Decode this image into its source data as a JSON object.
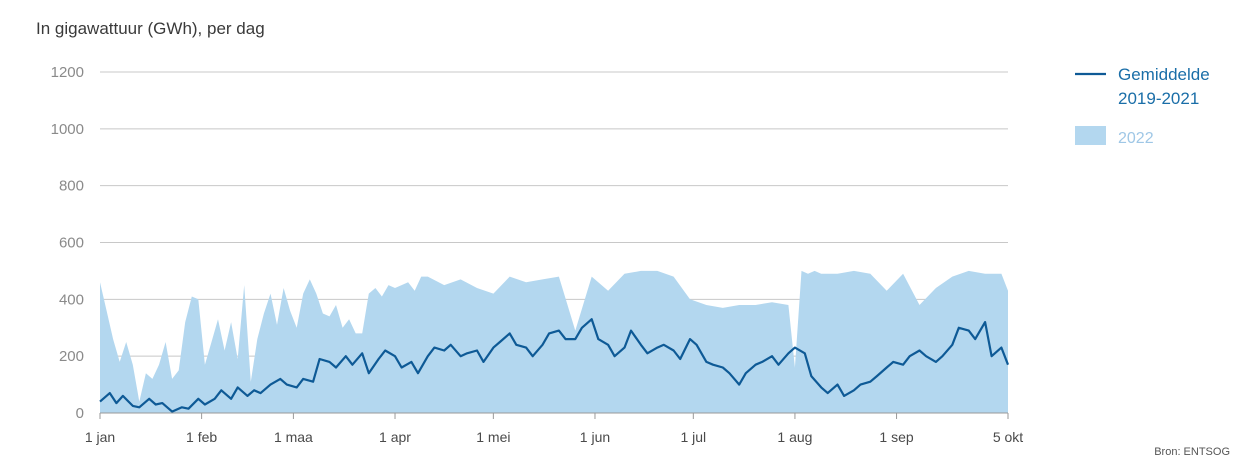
{
  "chart_data": {
    "type": "area",
    "title": "",
    "ylabel": "In gigawattuur (GWh), per dag",
    "xlabel": "",
    "ylim": [
      0,
      1200
    ],
    "yticks": [
      0,
      200,
      400,
      600,
      800,
      1000,
      1200
    ],
    "x_range_days": [
      0,
      277
    ],
    "xticks": [
      {
        "label": "1 jan",
        "day": 0
      },
      {
        "label": "1 feb",
        "day": 31
      },
      {
        "label": "1 maa",
        "day": 59
      },
      {
        "label": "1 apr",
        "day": 90
      },
      {
        "label": "1 mei",
        "day": 120
      },
      {
        "label": "1 jun",
        "day": 151
      },
      {
        "label": "1 jul",
        "day": 181
      },
      {
        "label": "1 aug",
        "day": 212
      },
      {
        "label": "1 sep",
        "day": 243
      },
      {
        "label": "5 okt",
        "day": 277
      }
    ],
    "grid": true,
    "legend_position": "top-right",
    "series": [
      {
        "name": "Gemiddelde 2019-2021",
        "name_lines": [
          "Gemiddelde",
          "2019-2021"
        ],
        "kind": "line",
        "color": "#0e5a96",
        "x": [
          0,
          3,
          5,
          7,
          10,
          12,
          15,
          17,
          19,
          22,
          25,
          27,
          30,
          32,
          35,
          37,
          40,
          42,
          45,
          47,
          49,
          52,
          55,
          57,
          60,
          62,
          65,
          67,
          70,
          72,
          75,
          77,
          80,
          82,
          85,
          87,
          90,
          92,
          95,
          97,
          100,
          102,
          105,
          107,
          110,
          112,
          115,
          117,
          120,
          122,
          125,
          127,
          130,
          132,
          135,
          137,
          140,
          142,
          145,
          147,
          150,
          152,
          155,
          157,
          160,
          162,
          165,
          167,
          170,
          172,
          175,
          177,
          180,
          182,
          185,
          187,
          190,
          192,
          195,
          197,
          200,
          202,
          205,
          207,
          210,
          212,
          215,
          217,
          220,
          222,
          225,
          227,
          230,
          232,
          235,
          237,
          240,
          242,
          245,
          247,
          250,
          252,
          255,
          257,
          260,
          262,
          265,
          267,
          270,
          272,
          275,
          277
        ],
        "y": [
          40,
          70,
          35,
          60,
          25,
          20,
          50,
          30,
          35,
          5,
          20,
          15,
          50,
          30,
          50,
          80,
          50,
          90,
          60,
          80,
          70,
          100,
          120,
          100,
          90,
          120,
          110,
          190,
          180,
          160,
          200,
          170,
          210,
          140,
          190,
          220,
          200,
          160,
          180,
          140,
          200,
          230,
          220,
          240,
          200,
          210,
          220,
          180,
          230,
          250,
          280,
          240,
          230,
          200,
          240,
          280,
          290,
          260,
          260,
          300,
          330,
          260,
          240,
          200,
          230,
          290,
          240,
          210,
          230,
          240,
          220,
          190,
          260,
          240,
          180,
          170,
          160,
          140,
          100,
          140,
          170,
          180,
          200,
          170,
          210,
          230,
          210,
          130,
          90,
          70,
          100,
          60,
          80,
          100,
          110,
          130,
          160,
          180,
          170,
          200,
          220,
          200,
          180,
          200,
          240,
          300,
          290,
          260,
          320,
          200,
          230,
          170
        ]
      },
      {
        "name": "2022",
        "kind": "area",
        "color": "#b3d7ef",
        "x": [
          0,
          2,
          4,
          6,
          8,
          10,
          12,
          14,
          16,
          18,
          20,
          22,
          24,
          26,
          28,
          30,
          32,
          34,
          36,
          38,
          40,
          42,
          44,
          46,
          48,
          50,
          52,
          54,
          56,
          58,
          60,
          62,
          64,
          66,
          68,
          70,
          72,
          74,
          76,
          78,
          80,
          82,
          84,
          86,
          88,
          90,
          92,
          94,
          96,
          98,
          100,
          105,
          110,
          115,
          120,
          125,
          130,
          135,
          140,
          145,
          150,
          155,
          160,
          165,
          170,
          175,
          180,
          185,
          190,
          195,
          200,
          205,
          210,
          212,
          214,
          216,
          218,
          220,
          225,
          230,
          235,
          240,
          245,
          250,
          255,
          260,
          265,
          270,
          275,
          277
        ],
        "y": [
          460,
          360,
          260,
          180,
          250,
          170,
          40,
          140,
          120,
          170,
          250,
          120,
          150,
          320,
          410,
          400,
          170,
          250,
          330,
          220,
          320,
          190,
          450,
          110,
          260,
          350,
          420,
          310,
          440,
          360,
          300,
          420,
          470,
          420,
          350,
          340,
          380,
          300,
          330,
          280,
          280,
          420,
          440,
          410,
          450,
          440,
          450,
          460,
          430,
          480,
          480,
          450,
          470,
          440,
          420,
          480,
          460,
          470,
          480,
          290,
          480,
          430,
          490,
          500,
          500,
          480,
          400,
          380,
          370,
          380,
          380,
          390,
          380,
          160,
          500,
          490,
          500,
          490,
          490,
          500,
          490,
          430,
          490,
          380,
          440,
          480,
          500,
          490,
          490,
          430
        ]
      }
    ],
    "annotations": [
      "Bron: ENTSOG"
    ]
  }
}
